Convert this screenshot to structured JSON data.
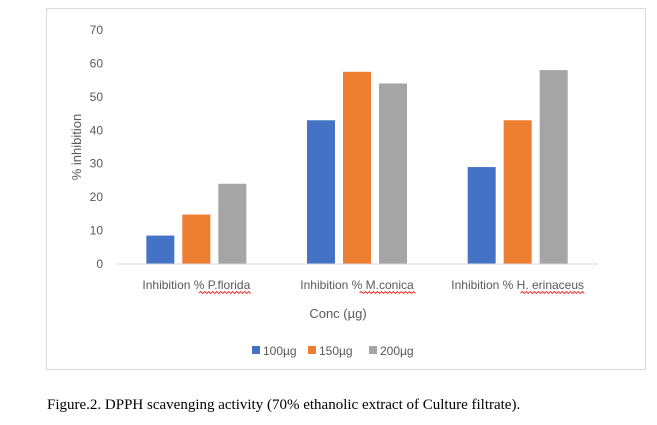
{
  "chart_data": {
    "type": "bar",
    "categories": [
      "Inhibition  % P.florida",
      "Inhibition  % M.conica",
      "Inhibition  % H. erinaceus"
    ],
    "series": [
      {
        "name": "100µg",
        "color": "#4472c4",
        "values": [
          8.5,
          43,
          29
        ]
      },
      {
        "name": "150µg",
        "color": "#ed7d31",
        "values": [
          14.8,
          57.5,
          43
        ]
      },
      {
        "name": "200µg",
        "color": "#a5a5a5",
        "values": [
          24,
          54,
          58
        ]
      }
    ],
    "xlabel": "Conc (µg)",
    "ylabel": "% inhibition",
    "ylim": [
      0,
      70
    ],
    "yticks": [
      "0",
      "10",
      "20",
      "30",
      "40",
      "50",
      "60",
      "70"
    ],
    "grid": false,
    "legend": "bottom"
  },
  "caption": "Figure.2.  DPPH scavenging activity (70% ethanolic extract of Culture filtrate)."
}
